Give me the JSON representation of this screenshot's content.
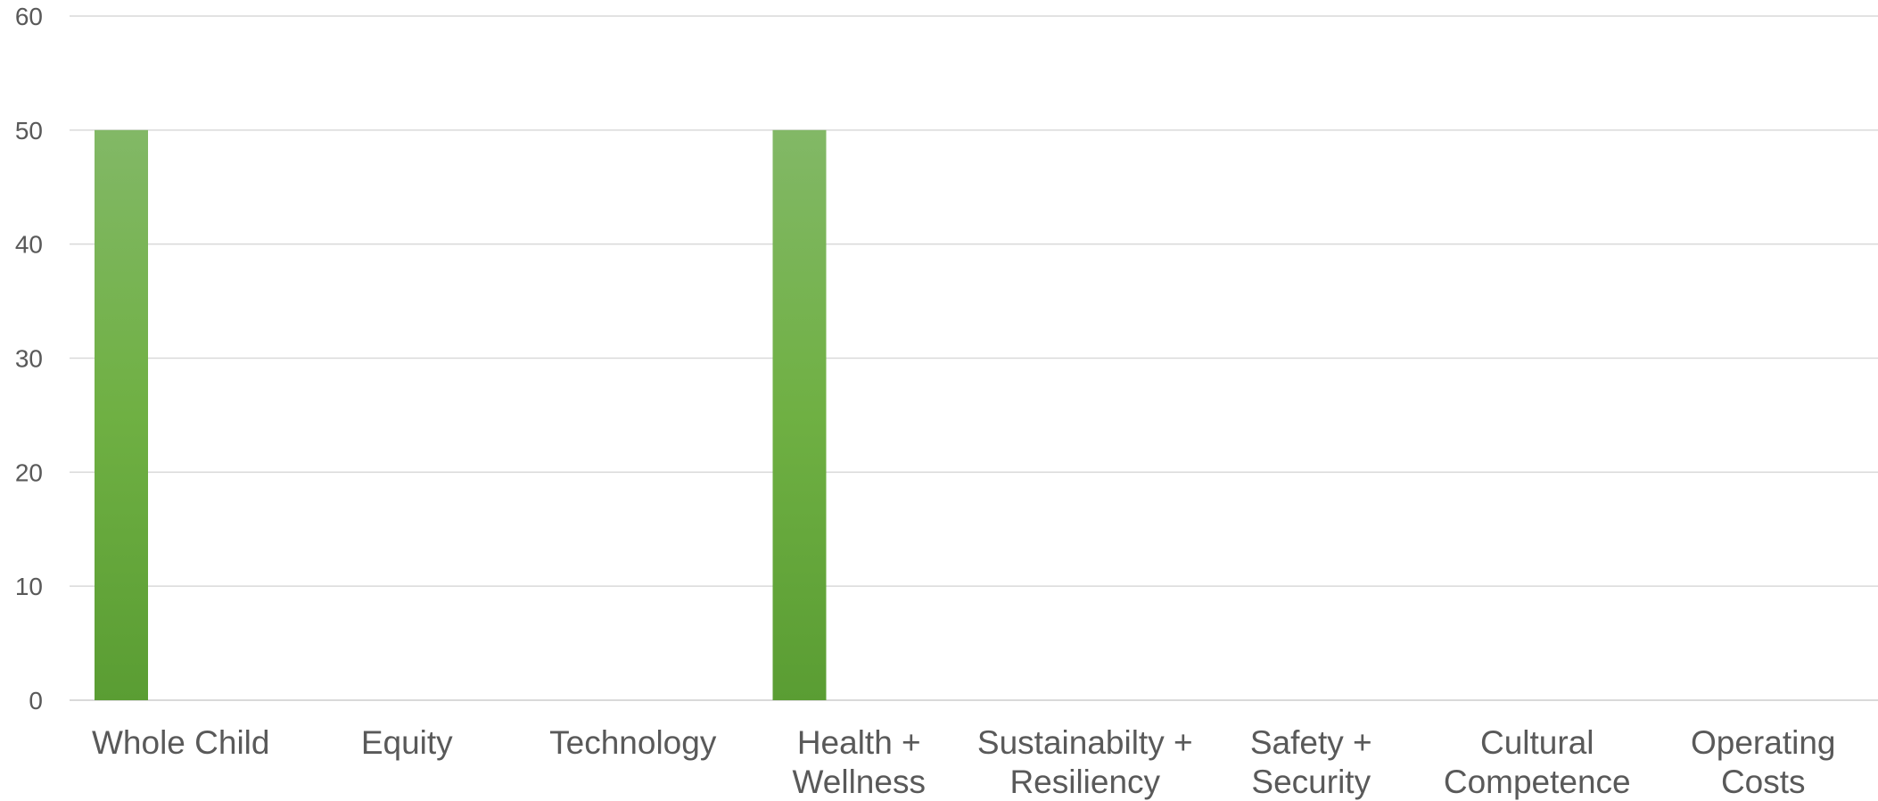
{
  "chart_data": {
    "type": "bar",
    "categories": [
      [
        "Whole Child"
      ],
      [
        "Equity"
      ],
      [
        "Technology"
      ],
      [
        "Health +",
        "Wellness"
      ],
      [
        "Sustainabilty +",
        "Resiliency"
      ],
      [
        "Safety +",
        "Security"
      ],
      [
        "Cultural",
        "Competence"
      ],
      [
        "Operating",
        "Costs"
      ]
    ],
    "values": [
      50,
      0,
      0,
      50,
      0,
      0,
      0,
      0
    ],
    "ylim": [
      0,
      60
    ],
    "yticks": [
      "0",
      "10",
      "20",
      "30",
      "40",
      "50",
      "60"
    ],
    "grid": true,
    "legend": "none",
    "colors": {
      "bar_top": "#82b866",
      "bar_mid": "#6fb043",
      "bar_bottom": "#5a9d33",
      "grid": "#d9d9d9",
      "text": "#595959"
    }
  }
}
